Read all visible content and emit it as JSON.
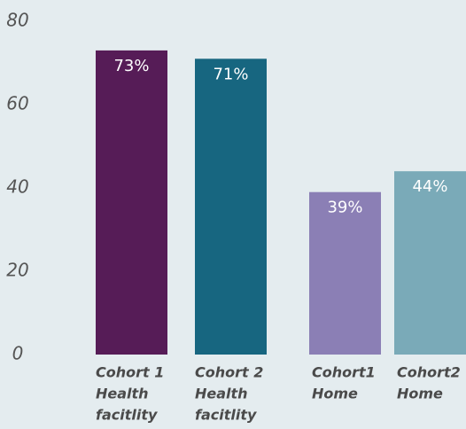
{
  "chart_data": {
    "type": "bar",
    "categories": [
      [
        "Cohort 1",
        "Health",
        "facitlity"
      ],
      [
        "Cohort 2",
        "Health",
        "facitlity"
      ],
      [
        "Cohort1",
        "Home"
      ],
      [
        "Cohort2",
        "Home"
      ]
    ],
    "values": [
      73,
      71,
      39,
      44
    ],
    "value_labels": [
      "73%",
      "71%",
      "39%",
      "44%"
    ],
    "colors": [
      "#561c57",
      "#176680",
      "#8b7fb5",
      "#7aaab8"
    ],
    "ylim": [
      0,
      80
    ],
    "yticks": [
      0,
      20,
      40,
      60,
      80
    ],
    "grid": false
  }
}
